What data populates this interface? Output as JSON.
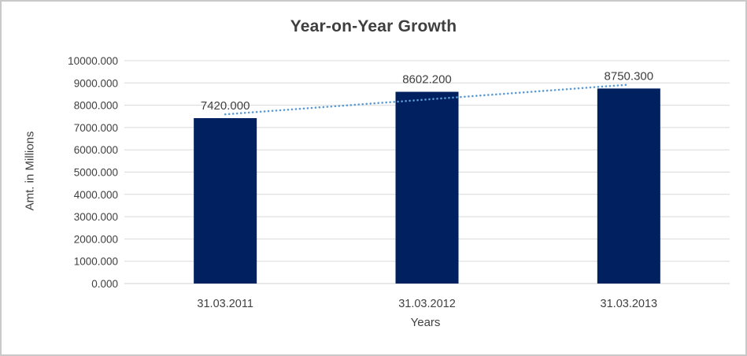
{
  "chart_data": {
    "type": "bar",
    "title": "Year-on-Year Growth",
    "xlabel": "Years",
    "ylabel": "Amt. in Millions",
    "categories": [
      "31.03.2011",
      "31.03.2012",
      "31.03.2013"
    ],
    "values": [
      7420.0,
      8602.2,
      8750.3
    ],
    "data_labels": [
      "7420.000",
      "8602.200",
      "8750.300"
    ],
    "ylim": [
      0,
      10000
    ],
    "ytick_step": 1000,
    "ytick_labels": [
      "0.000",
      "1000.000",
      "2000.000",
      "3000.000",
      "4000.000",
      "5000.000",
      "6000.000",
      "7000.000",
      "8000.000",
      "9000.000",
      "10000.000"
    ],
    "grid": true,
    "legend": "none",
    "trendline": {
      "type": "linear",
      "style": "dotted",
      "color": "#5B9BD5"
    },
    "colors": {
      "bar": "#002060",
      "gridline": "#D9D9D9",
      "axis_line": "#D0D0D0",
      "text": "#404040",
      "title_text": "#3F3F3F",
      "border": "#C9C9C9",
      "background": "#FFFFFF"
    }
  }
}
